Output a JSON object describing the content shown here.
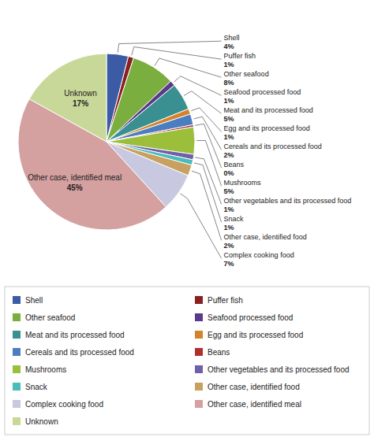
{
  "chart_data": {
    "type": "pie",
    "categories": [
      "Shell",
      "Puffer fish",
      "Other seafood",
      "Seafood processed food",
      "Meat and its processed food",
      "Egg and its processed food",
      "Cereals and its processed food",
      "Beans",
      "Mushrooms",
      "Other vegetables and its processed food",
      "Snack",
      "Other case, identified food",
      "Complex cooking food",
      "Other case, identified meal",
      "Unknown"
    ],
    "values": [
      4,
      1,
      8,
      1,
      5,
      1,
      2,
      0.4,
      5,
      1,
      1,
      2,
      7,
      45,
      17
    ],
    "value_labels": [
      "4%",
      "1%",
      "8%",
      "1%",
      "5%",
      "1%",
      "2%",
      "0%",
      "5%",
      "1%",
      "1%",
      "2%",
      "7%",
      "45%",
      "17%"
    ],
    "colors": [
      "#3B5BA5",
      "#8B2020",
      "#7AAE3E",
      "#5B3A8A",
      "#3A9090",
      "#D4832A",
      "#4A7EC0",
      "#B03030",
      "#9BBF3A",
      "#7060A8",
      "#4ABCBC",
      "#C8A060",
      "#C8C8E0",
      "#D4A0A0",
      "#C8D898"
    ],
    "data_labels": true,
    "legend": "bottom"
  }
}
